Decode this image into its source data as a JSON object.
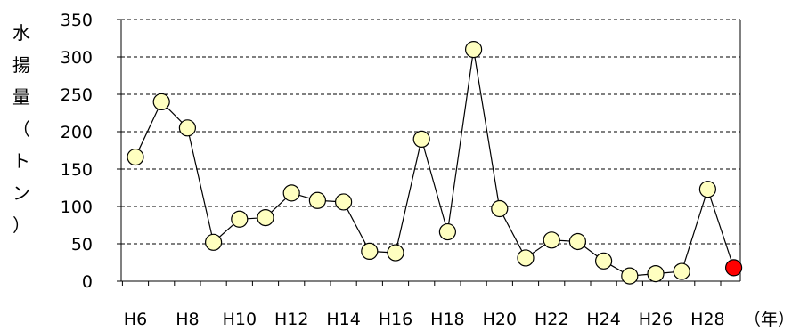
{
  "chart_data": {
    "type": "line",
    "title": "",
    "ylabel": "水揚量（トン）",
    "xlabel": "（年）",
    "ylim": [
      0,
      350
    ],
    "yticks": [
      0,
      50,
      100,
      150,
      200,
      250,
      300,
      350
    ],
    "ytick_labels": [
      "0",
      "50",
      "100",
      "150",
      "200",
      "250",
      "300",
      "350"
    ],
    "grid": "horizontal dashed",
    "categories": [
      "H6",
      "H7",
      "H8",
      "H9",
      "H10",
      "H11",
      "H12",
      "H13",
      "H14",
      "H15",
      "H16",
      "H17",
      "H18",
      "H19",
      "H20",
      "H21",
      "H22",
      "H23",
      "H24",
      "H25",
      "H26",
      "H27",
      "H28",
      "H29"
    ],
    "xtick_labels": [
      "H6",
      "",
      "H8",
      "",
      "H10",
      "",
      "H12",
      "",
      "H14",
      "",
      "H16",
      "",
      "H18",
      "",
      "H20",
      "",
      "H22",
      "",
      "H24",
      "",
      "H26",
      "",
      "H28",
      ""
    ],
    "values": [
      166,
      240,
      205,
      52,
      83,
      85,
      118,
      108,
      106,
      40,
      38,
      190,
      66,
      310,
      97,
      31,
      55,
      53,
      27,
      7,
      10,
      13,
      123,
      18
    ],
    "highlight_index": 23,
    "colors": {
      "marker_fill": "#ffffc0",
      "marker_stroke": "#000000",
      "highlight_fill": "#ff0000",
      "line": "#000000",
      "grid": "#000000"
    }
  }
}
